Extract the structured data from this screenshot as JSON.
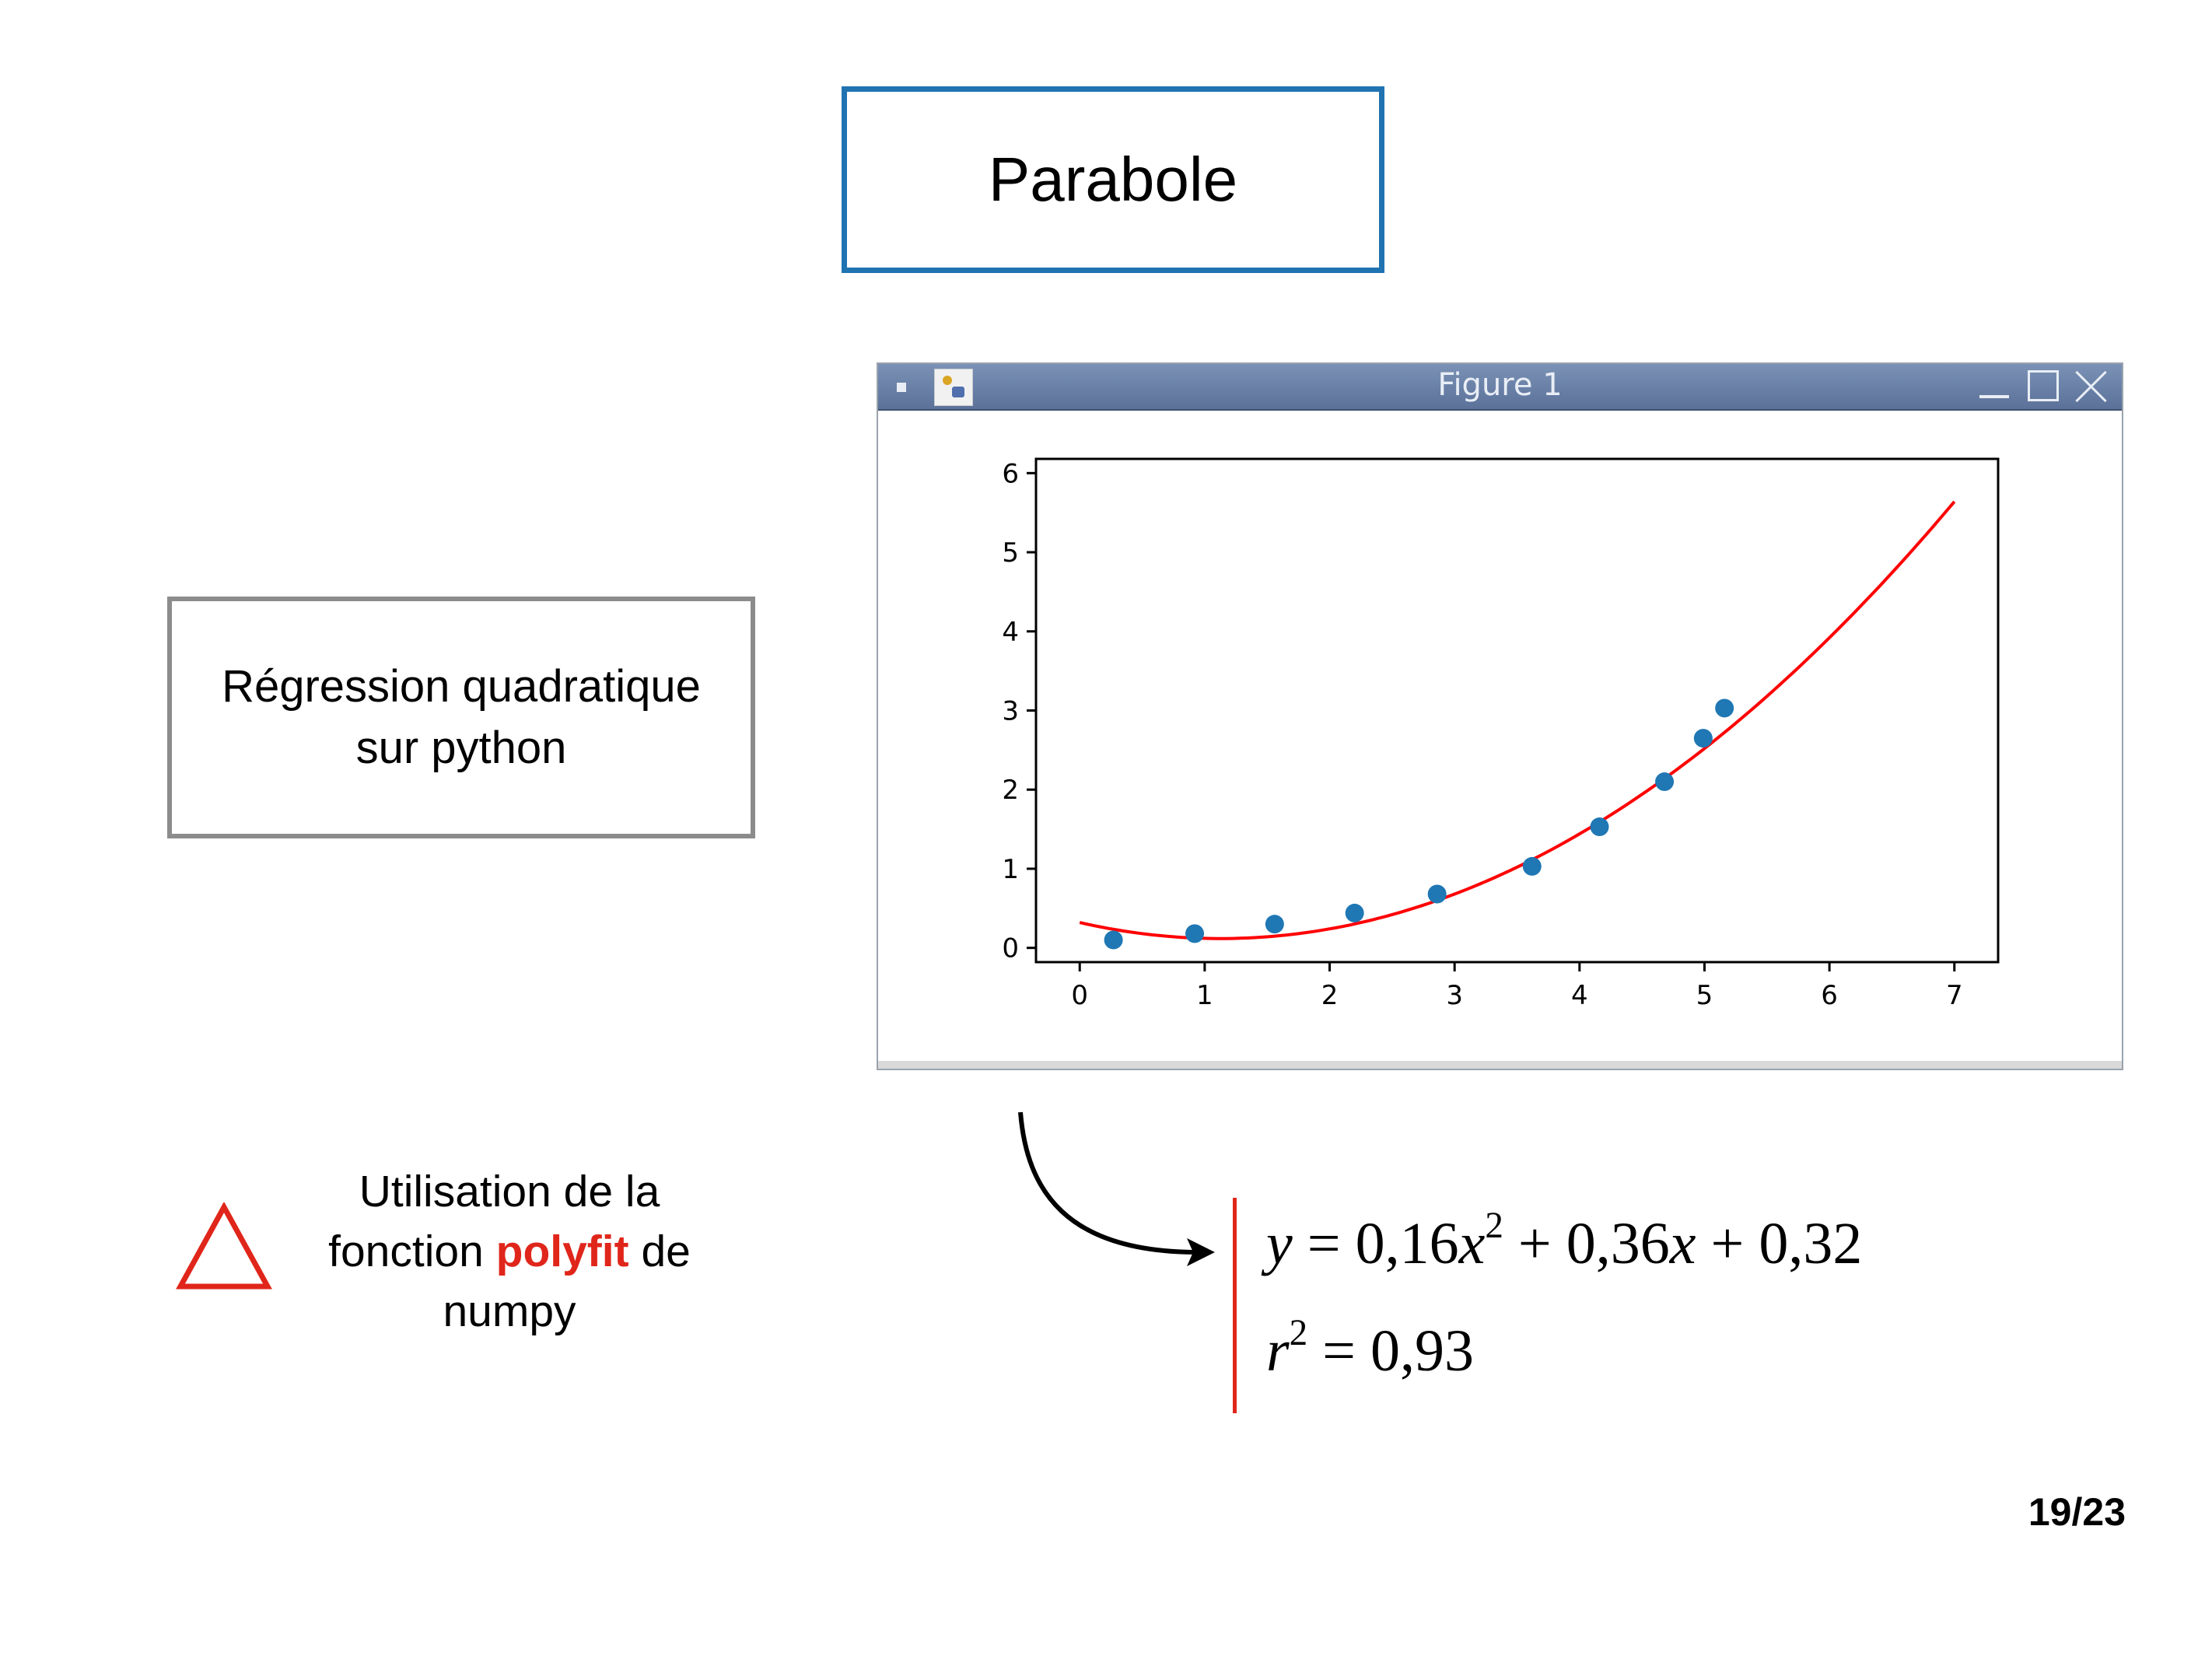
{
  "slide": {
    "title": "Parabole",
    "subtitle_line1": "Régression quadratique",
    "subtitle_line2": "sur python",
    "note_prefix": "Utilisation de la",
    "note_mid_before": "fonction ",
    "note_highlight": "polyfit",
    "note_mid_after": " de",
    "note_suffix": "numpy",
    "page_number": "19/23"
  },
  "window": {
    "title": "Figure 1",
    "icons": [
      "window-menu-icon",
      "app-icon",
      "minimize-icon",
      "maximize-icon",
      "close-icon"
    ]
  },
  "formula": {
    "eq_lhs": "y",
    "eq_a": "0,16",
    "eq_var": "x",
    "eq_exp": "2",
    "eq_b": "0,36",
    "eq_c": "0,32",
    "r2_var": "r",
    "r2_exp": "2",
    "r2_value": "0,93"
  },
  "colors": {
    "title_border": "#1f73b1",
    "subtitle_border": "#8c8c8c",
    "accent_red": "#e0261b",
    "points": "#1f77b4",
    "fit_line": "#ff0000"
  },
  "chart_data": {
    "type": "scatter",
    "title": "",
    "xlabel": "",
    "ylabel": "",
    "xlim": [
      -0.35,
      7.35
    ],
    "ylim": [
      -0.18,
      6.18
    ],
    "xticks": [
      "0",
      "1",
      "2",
      "3",
      "4",
      "5",
      "6",
      "7"
    ],
    "yticks": [
      "0",
      "1",
      "2",
      "3",
      "4",
      "5",
      "6"
    ],
    "grid": false,
    "points": {
      "x": [
        0.27,
        0.92,
        1.56,
        2.2,
        2.86,
        3.62,
        4.16,
        4.68,
        4.99,
        5.16
      ],
      "y": [
        0.1,
        0.18,
        0.3,
        0.44,
        0.68,
        1.03,
        1.53,
        2.1,
        2.65,
        3.03
      ]
    },
    "fit_curve": {
      "type": "quadratic",
      "coefficients": [
        0.16,
        -0.36,
        0.32
      ],
      "x_range": [
        0,
        7
      ]
    }
  }
}
